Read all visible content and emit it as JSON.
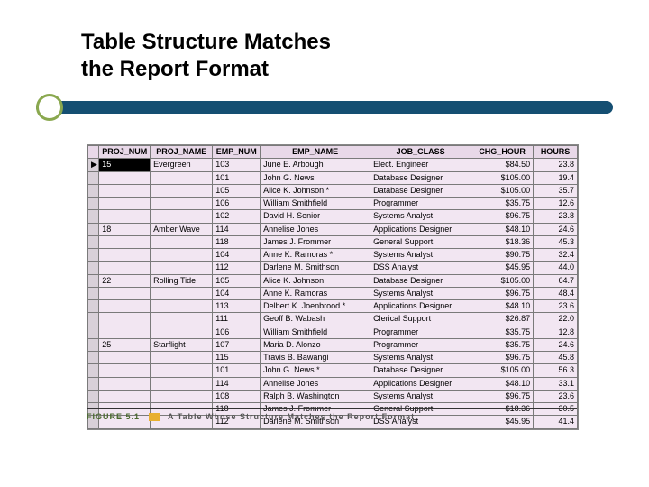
{
  "title_line1": "Table Structure Matches",
  "title_line2": "the Report Format",
  "accent": {
    "bar_color": "#154f72",
    "ring_color": "#8aa84f"
  },
  "table": {
    "header_bg": "#e8d8e8",
    "body_bg": "#f2e6f2",
    "border_color": "#7a7a7a",
    "columns": [
      "PROJ_NUM",
      "PROJ_NAME",
      "EMP_NUM",
      "EMP_NAME",
      "JOB_CLASS",
      "CHG_HOUR",
      "HOURS"
    ],
    "col_align": [
      "left",
      "left",
      "left",
      "left",
      "left",
      "right",
      "right"
    ],
    "rows": [
      {
        "sel": "▶",
        "proj_num": "15",
        "proj_num_selected": true,
        "proj_name": "Evergreen",
        "emp_num": "103",
        "emp_name": "June E. Arbough",
        "job_class": "Elect. Engineer",
        "chg_hour": "$84.50",
        "hours": "23.8"
      },
      {
        "sel": "",
        "proj_num": "",
        "proj_name": "",
        "emp_num": "101",
        "emp_name": "John G. News",
        "job_class": "Database Designer",
        "chg_hour": "$105.00",
        "hours": "19.4"
      },
      {
        "sel": "",
        "proj_num": "",
        "proj_name": "",
        "emp_num": "105",
        "emp_name": "Alice K. Johnson *",
        "job_class": "Database Designer",
        "chg_hour": "$105.00",
        "hours": "35.7"
      },
      {
        "sel": "",
        "proj_num": "",
        "proj_name": "",
        "emp_num": "106",
        "emp_name": "William Smithfield",
        "job_class": "Programmer",
        "chg_hour": "$35.75",
        "hours": "12.6"
      },
      {
        "sel": "",
        "proj_num": "",
        "proj_name": "",
        "emp_num": "102",
        "emp_name": "David H. Senior",
        "job_class": "Systems Analyst",
        "chg_hour": "$96.75",
        "hours": "23.8"
      },
      {
        "sel": "",
        "proj_num": "18",
        "proj_name": "Amber Wave",
        "emp_num": "114",
        "emp_name": "Annelise Jones",
        "job_class": "Applications Designer",
        "chg_hour": "$48.10",
        "hours": "24.6"
      },
      {
        "sel": "",
        "proj_num": "",
        "proj_name": "",
        "emp_num": "118",
        "emp_name": "James J. Frommer",
        "job_class": "General Support",
        "chg_hour": "$18.36",
        "hours": "45.3"
      },
      {
        "sel": "",
        "proj_num": "",
        "proj_name": "",
        "emp_num": "104",
        "emp_name": "Anne K. Ramoras *",
        "job_class": "Systems Analyst",
        "chg_hour": "$90.75",
        "hours": "32.4"
      },
      {
        "sel": "",
        "proj_num": "",
        "proj_name": "",
        "emp_num": "112",
        "emp_name": "Darlene M. Smithson",
        "job_class": "DSS Analyst",
        "chg_hour": "$45.95",
        "hours": "44.0"
      },
      {
        "sel": "",
        "proj_num": "22",
        "proj_name": "Rolling Tide",
        "emp_num": "105",
        "emp_name": "Alice K. Johnson",
        "job_class": "Database Designer",
        "chg_hour": "$105.00",
        "hours": "64.7"
      },
      {
        "sel": "",
        "proj_num": "",
        "proj_name": "",
        "emp_num": "104",
        "emp_name": "Anne K. Ramoras",
        "job_class": "Systems Analyst",
        "chg_hour": "$96.75",
        "hours": "48.4"
      },
      {
        "sel": "",
        "proj_num": "",
        "proj_name": "",
        "emp_num": "113",
        "emp_name": "Delbert K. Joenbrood *",
        "job_class": "Applications Designer",
        "chg_hour": "$48.10",
        "hours": "23.6"
      },
      {
        "sel": "",
        "proj_num": "",
        "proj_name": "",
        "emp_num": "111",
        "emp_name": "Geoff B. Wabash",
        "job_class": "Clerical Support",
        "chg_hour": "$26.87",
        "hours": "22.0"
      },
      {
        "sel": "",
        "proj_num": "",
        "proj_name": "",
        "emp_num": "106",
        "emp_name": "William Smithfield",
        "job_class": "Programmer",
        "chg_hour": "$35.75",
        "hours": "12.8"
      },
      {
        "sel": "",
        "proj_num": "25",
        "proj_name": "Starflight",
        "emp_num": "107",
        "emp_name": "Maria D. Alonzo",
        "job_class": "Programmer",
        "chg_hour": "$35.75",
        "hours": "24.6"
      },
      {
        "sel": "",
        "proj_num": "",
        "proj_name": "",
        "emp_num": "115",
        "emp_name": "Travis B. Bawangi",
        "job_class": "Systems Analyst",
        "chg_hour": "$96.75",
        "hours": "45.8"
      },
      {
        "sel": "",
        "proj_num": "",
        "proj_name": "",
        "emp_num": "101",
        "emp_name": "John G. News *",
        "job_class": "Database Designer",
        "chg_hour": "$105.00",
        "hours": "56.3"
      },
      {
        "sel": "",
        "proj_num": "",
        "proj_name": "",
        "emp_num": "114",
        "emp_name": "Annelise Jones",
        "job_class": "Applications Designer",
        "chg_hour": "$48.10",
        "hours": "33.1"
      },
      {
        "sel": "",
        "proj_num": "",
        "proj_name": "",
        "emp_num": "108",
        "emp_name": "Ralph B. Washington",
        "job_class": "Systems Analyst",
        "chg_hour": "$96.75",
        "hours": "23.6"
      },
      {
        "sel": "",
        "proj_num": "",
        "proj_name": "",
        "emp_num": "118",
        "emp_name": "James J. Frommer",
        "job_class": "General Support",
        "chg_hour": "$18.36",
        "hours": "30.5"
      },
      {
        "sel": "",
        "proj_num": "",
        "proj_name": "",
        "emp_num": "112",
        "emp_name": "Darlene M. Smithson",
        "job_class": "DSS Analyst",
        "chg_hour": "$45.95",
        "hours": "41.4"
      }
    ]
  },
  "caption": {
    "figure_label": "FIGURE 5.1",
    "text": "A Table Whose Structure Matches the Report Format",
    "swatch_color": "#e8b030"
  }
}
